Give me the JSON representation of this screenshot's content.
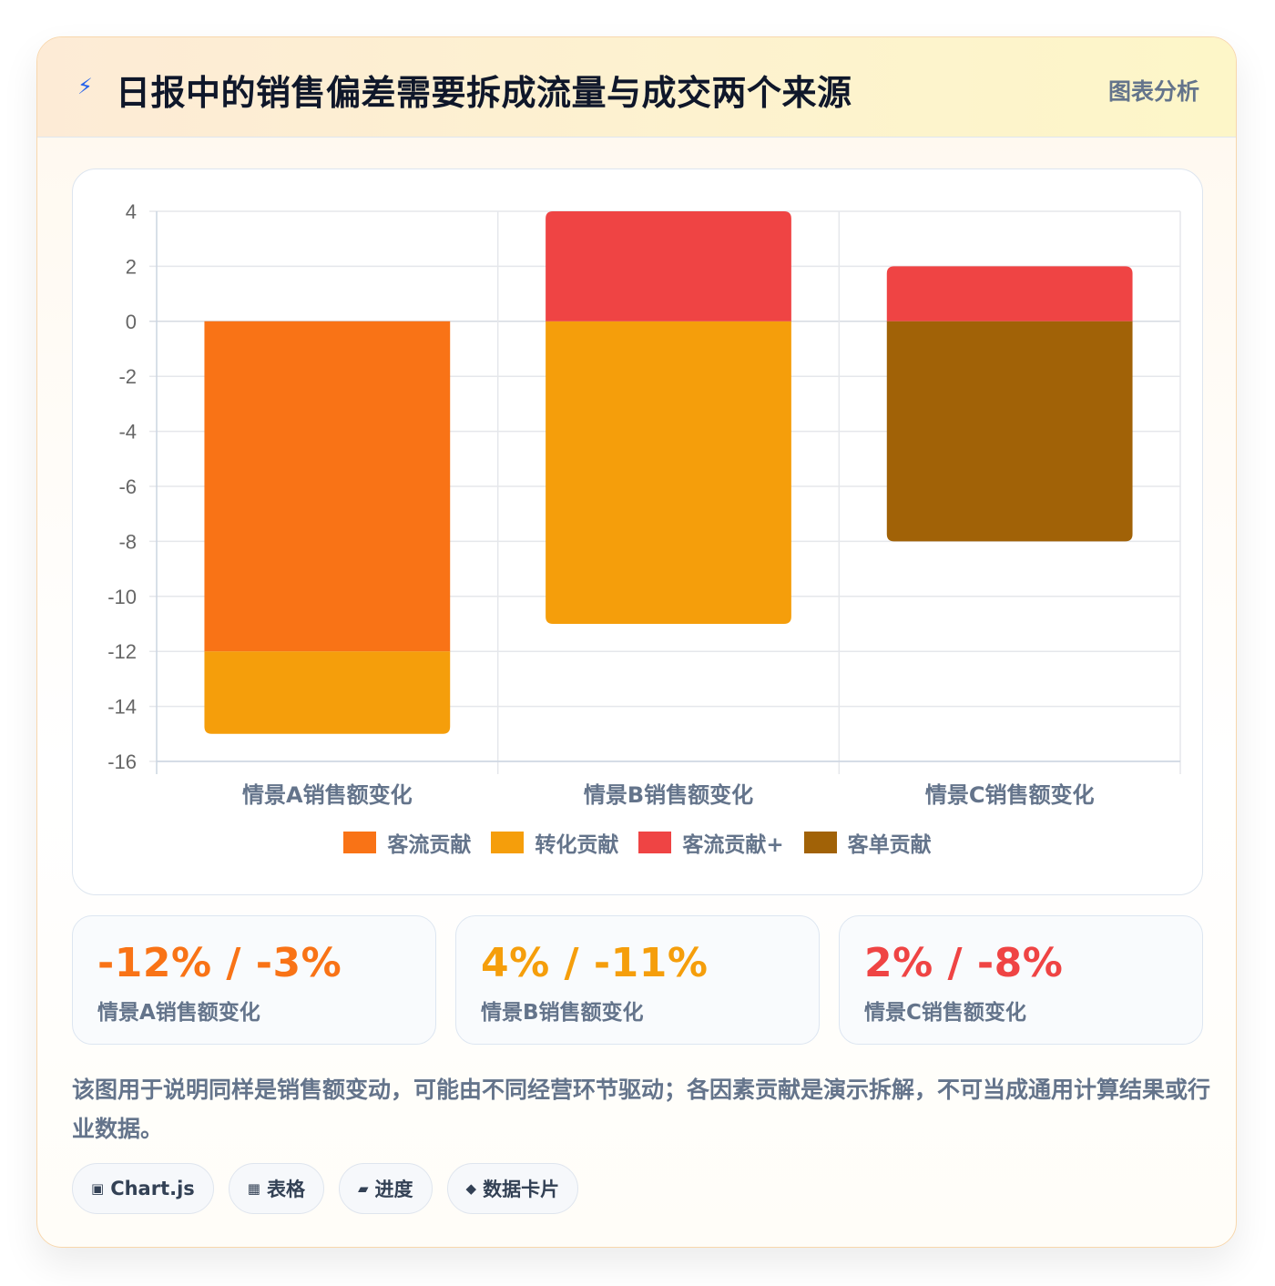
{
  "header": {
    "icon": "lightning-icon",
    "title": "日报中的销售偏差需要拆成流量与成交两个来源",
    "tag": "图表分析"
  },
  "colors": {
    "traffic": "#f97316",
    "conversion": "#f59e0b",
    "traffic_plus": "#ef4444",
    "basket": "#a16207"
  },
  "chart_data": {
    "type": "bar",
    "stacked": true,
    "title": "",
    "xlabel": "",
    "ylabel": "",
    "categories": [
      "情景A销售额变化",
      "情景B销售额变化",
      "情景C销售额变化"
    ],
    "ylim": [
      -16,
      4
    ],
    "ytick_step": 2,
    "grid": true,
    "legend_position": "bottom",
    "series": [
      {
        "name": "客流贡献",
        "color": "#f97316",
        "values": [
          -12,
          0,
          0
        ]
      },
      {
        "name": "转化贡献",
        "color": "#f59e0b",
        "values": [
          -3,
          -11,
          0
        ]
      },
      {
        "name": "客流贡献+",
        "color": "#ef4444",
        "values": [
          0,
          4,
          2
        ]
      },
      {
        "name": "客单贡献",
        "color": "#a16207",
        "values": [
          0,
          0,
          -8
        ]
      }
    ]
  },
  "stats": [
    {
      "value": "-12% / -3%",
      "label": "情景A销售额变化",
      "color": "#f97316"
    },
    {
      "value": "4% / -11%",
      "label": "情景B销售额变化",
      "color": "#f59e0b"
    },
    {
      "value": "2% / -8%",
      "label": "情景C销售额变化",
      "color": "#ef4444"
    }
  ],
  "description": "该图用于说明同样是销售额变动，可能由不同经营环节驱动；各因素贡献是演示拆解，不可当成通用计算结果或行业数据。",
  "chips": [
    {
      "icon": "▣",
      "icon_name": "chart-icon",
      "label": "Chart.js"
    },
    {
      "icon": "▦",
      "icon_name": "table-icon",
      "label": "表格"
    },
    {
      "icon": "▰",
      "icon_name": "progress-icon",
      "label": "进度"
    },
    {
      "icon": "◆",
      "icon_name": "data-card-icon",
      "label": "数据卡片"
    }
  ]
}
